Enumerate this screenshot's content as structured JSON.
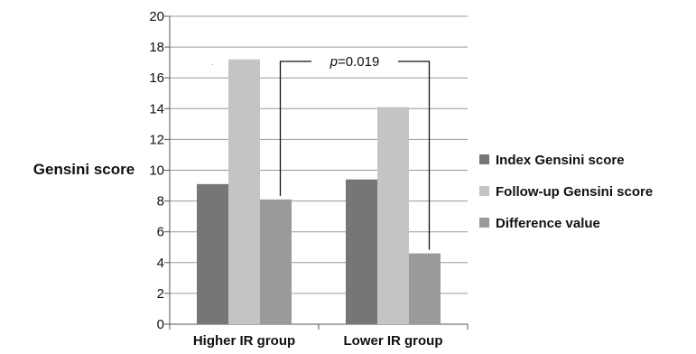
{
  "chart_data": {
    "type": "bar",
    "ylabel": "Gensini score",
    "xlabel": "",
    "ylim": [
      0,
      20
    ],
    "yticks": [
      0,
      2,
      4,
      6,
      8,
      10,
      12,
      14,
      16,
      18,
      20
    ],
    "grid": true,
    "legend_position": "right",
    "categories": [
      "Higher IR group",
      "Lower IR group"
    ],
    "series": [
      {
        "name": "Index Gensini score",
        "values": [
          9.1,
          9.4
        ],
        "color": "#767676"
      },
      {
        "name": "Follow-up Gensini score",
        "values": [
          17.2,
          14.1
        ],
        "color": "#c4c4c4"
      },
      {
        "name": "Difference value",
        "values": [
          8.1,
          4.6
        ],
        "color": "#9a9a9a"
      }
    ],
    "annotation": {
      "p_symbol": "p",
      "p_value": "=0.019"
    }
  }
}
